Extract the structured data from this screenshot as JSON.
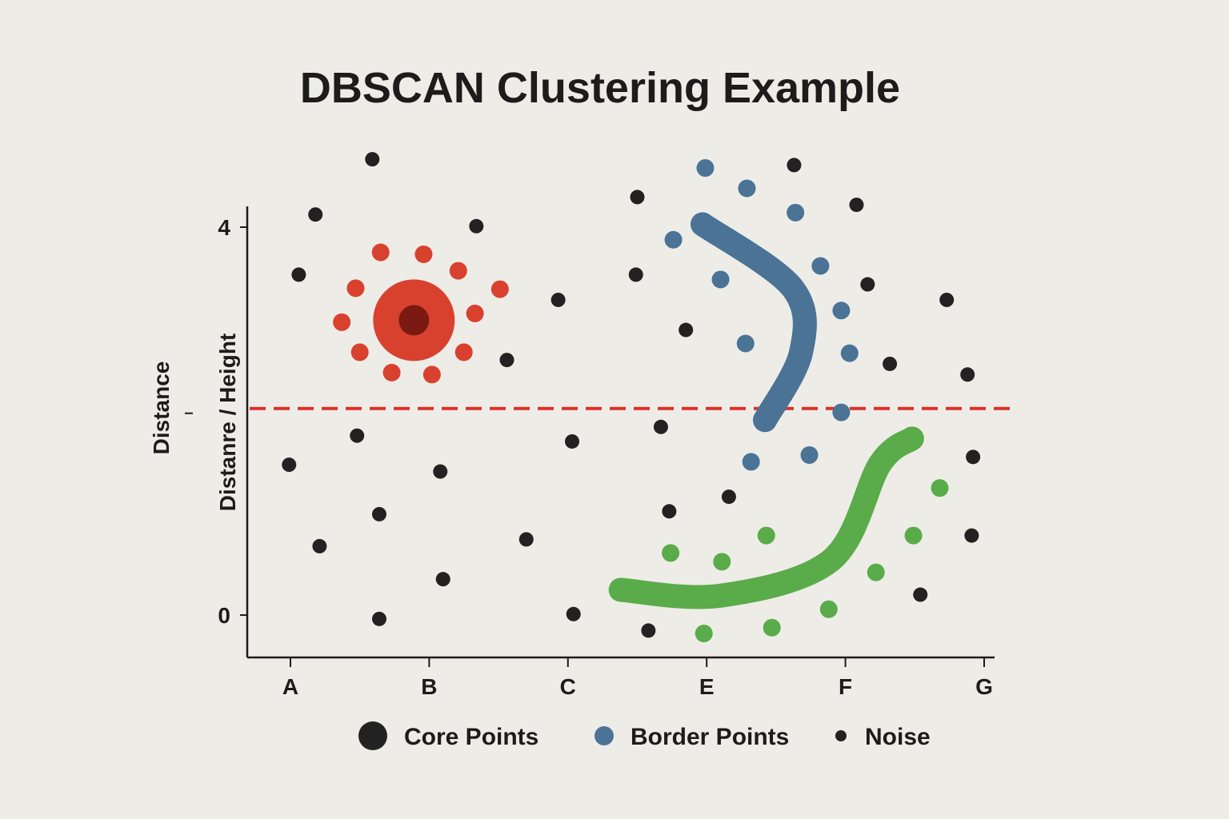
{
  "chart_data": {
    "type": "scatter",
    "title": "DBSCAN Clustering Example",
    "xlabel": "",
    "ylabel": "Distanre / Height",
    "ylabel_secondary": "Distance",
    "x_categories": [
      "A",
      "B",
      "C",
      "E",
      "F",
      "G"
    ],
    "x_category_values": [
      0,
      1,
      2,
      3,
      4,
      5
    ],
    "y_ticks": [
      {
        "value": 0,
        "label": "0"
      },
      {
        "value": 2.13,
        "label": "ı"
      },
      {
        "value": 4,
        "label": "4"
      }
    ],
    "xlim": [
      -0.3,
      5.1
    ],
    "ylim": [
      -0.4,
      4.6
    ],
    "epsilon_line": {
      "y": 2.13,
      "color": "#d9322a",
      "style": "dashed"
    },
    "colors": {
      "noise": "#222222",
      "red": "#d9412f",
      "red_core": "#7a1a12",
      "blue": "#4a7396",
      "green": "#5aab49"
    },
    "clusters": [
      {
        "name": "red",
        "core": {
          "x": 0.89,
          "y": 3.04
        },
        "border": [
          [
            0.65,
            3.74
          ],
          [
            0.96,
            3.72
          ],
          [
            1.21,
            3.55
          ],
          [
            0.47,
            3.37
          ],
          [
            1.51,
            3.36
          ],
          [
            0.37,
            3.02
          ],
          [
            1.33,
            3.11
          ],
          [
            0.5,
            2.71
          ],
          [
            1.25,
            2.71
          ],
          [
            0.73,
            2.5
          ],
          [
            1.02,
            2.48
          ]
        ]
      },
      {
        "name": "blue",
        "core_path": [
          [
            2.97,
            4.03
          ],
          [
            3.62,
            3.37
          ],
          [
            3.68,
            2.71
          ],
          [
            3.42,
            2.01
          ]
        ],
        "border": [
          [
            2.99,
            4.61
          ],
          [
            3.29,
            4.4
          ],
          [
            3.64,
            4.15
          ],
          [
            2.76,
            3.87
          ],
          [
            3.82,
            3.6
          ],
          [
            3.1,
            3.46
          ],
          [
            3.97,
            3.14
          ],
          [
            3.28,
            2.8
          ],
          [
            4.03,
            2.7
          ],
          [
            3.97,
            2.09
          ],
          [
            3.32,
            1.58
          ],
          [
            3.74,
            1.65
          ]
        ]
      },
      {
        "name": "green",
        "core_path": [
          [
            2.38,
            0.26
          ],
          [
            3.1,
            0.2
          ],
          [
            3.9,
            0.57
          ],
          [
            4.25,
            1.56
          ],
          [
            4.48,
            1.82
          ]
        ],
        "border": [
          [
            2.74,
            0.64
          ],
          [
            3.11,
            0.55
          ],
          [
            3.43,
            0.82
          ],
          [
            4.68,
            1.31
          ],
          [
            4.49,
            0.82
          ],
          [
            4.22,
            0.44
          ],
          [
            3.88,
            0.06
          ],
          [
            3.47,
            -0.13
          ],
          [
            2.98,
            -0.19
          ]
        ]
      }
    ],
    "noise": [
      [
        0.59,
        4.7
      ],
      [
        0.18,
        4.13
      ],
      [
        1.34,
        4.01
      ],
      [
        0.06,
        3.51
      ],
      [
        1.56,
        2.63
      ],
      [
        1.93,
        3.25
      ],
      [
        2.5,
        4.31
      ],
      [
        2.49,
        3.51
      ],
      [
        2.85,
        2.94
      ],
      [
        3.63,
        4.64
      ],
      [
        4.08,
        4.23
      ],
      [
        4.16,
        3.41
      ],
      [
        4.73,
        3.25
      ],
      [
        4.32,
        2.59
      ],
      [
        4.88,
        2.48
      ],
      [
        2.67,
        1.94
      ],
      [
        2.03,
        1.79
      ],
      [
        0.48,
        1.85
      ],
      [
        -0.01,
        1.55
      ],
      [
        1.08,
        1.48
      ],
      [
        4.92,
        1.63
      ],
      [
        0.64,
        1.04
      ],
      [
        3.16,
        1.22
      ],
      [
        2.73,
        1.07
      ],
      [
        1.7,
        0.78
      ],
      [
        0.21,
        0.71
      ],
      [
        4.91,
        0.82
      ],
      [
        1.1,
        0.37
      ],
      [
        4.54,
        0.21
      ],
      [
        0.64,
        -0.04
      ],
      [
        2.04,
        0.01
      ],
      [
        2.58,
        -0.16
      ]
    ],
    "legend": {
      "placement": "bottom",
      "entries": [
        "Core Points",
        "Border Points",
        "Noise"
      ]
    }
  }
}
